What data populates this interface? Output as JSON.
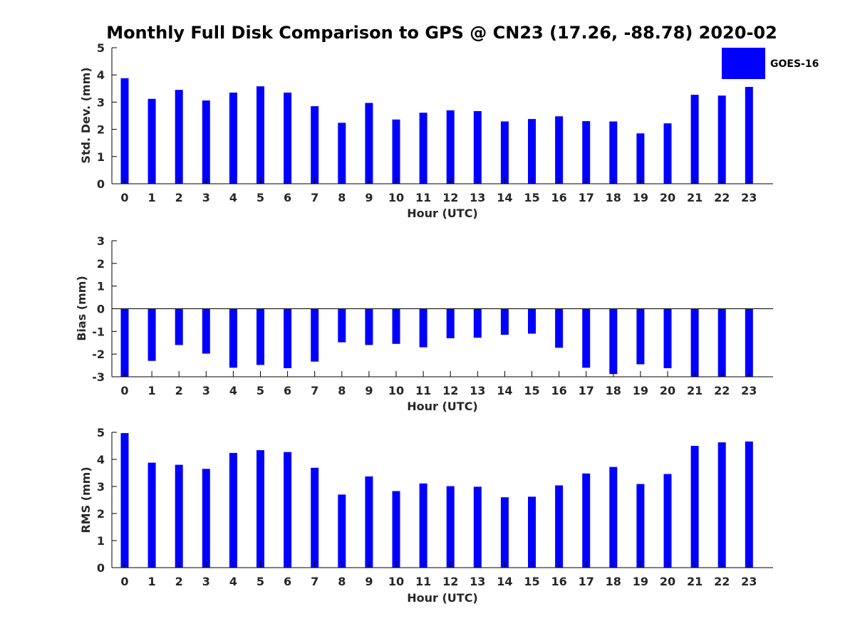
{
  "chart_data": {
    "title": "Monthly Full Disk Comparison to GPS @ CN23 (17.26, -88.78) 2020-02",
    "type": "bar",
    "bar_color": "#0000ff",
    "legend": {
      "label": "GOES-16",
      "placement": "top-right"
    },
    "categories": [
      "0",
      "1",
      "2",
      "3",
      "4",
      "5",
      "6",
      "7",
      "8",
      "9",
      "10",
      "11",
      "12",
      "13",
      "14",
      "15",
      "16",
      "17",
      "18",
      "19",
      "20",
      "21",
      "22",
      "23"
    ],
    "panels": [
      {
        "id": "stddev",
        "ylabel": "Std. Dev. (mm)",
        "xlabel": "Hour (UTC)",
        "ylim": [
          0,
          5
        ],
        "yticks": [
          "0",
          "1",
          "2",
          "3",
          "4",
          "5"
        ],
        "values": [
          3.88,
          3.12,
          3.45,
          3.06,
          3.35,
          3.58,
          3.35,
          2.85,
          2.24,
          2.97,
          2.36,
          2.61,
          2.7,
          2.67,
          2.29,
          2.38,
          2.48,
          2.3,
          2.29,
          1.85,
          2.22,
          3.27,
          3.24,
          3.56
        ]
      },
      {
        "id": "bias",
        "ylabel": "Bias (mm)",
        "xlabel": "Hour (UTC)",
        "ylim": [
          -3,
          3
        ],
        "yticks": [
          "-3",
          "-2",
          "-1",
          "0",
          "1",
          "2",
          "3"
        ],
        "values": [
          -3.0,
          -2.3,
          -1.6,
          -1.98,
          -2.6,
          -2.48,
          -2.62,
          -2.33,
          -1.48,
          -1.6,
          -1.55,
          -1.7,
          -1.3,
          -1.28,
          -1.15,
          -1.1,
          -1.72,
          -2.6,
          -2.88,
          -2.45,
          -2.62,
          -3.0,
          -3.0,
          -3.0
        ]
      },
      {
        "id": "rms",
        "ylabel": "RMS (mm)",
        "xlabel": "Hour (UTC)",
        "ylim": [
          0,
          5
        ],
        "yticks": [
          "0",
          "1",
          "2",
          "3",
          "4",
          "5"
        ],
        "values": [
          4.97,
          3.88,
          3.8,
          3.65,
          4.24,
          4.34,
          4.27,
          3.69,
          2.7,
          3.37,
          2.83,
          3.11,
          3.01,
          2.99,
          2.6,
          2.62,
          3.04,
          3.48,
          3.72,
          3.09,
          3.46,
          4.5,
          4.63,
          4.66
        ]
      }
    ]
  }
}
